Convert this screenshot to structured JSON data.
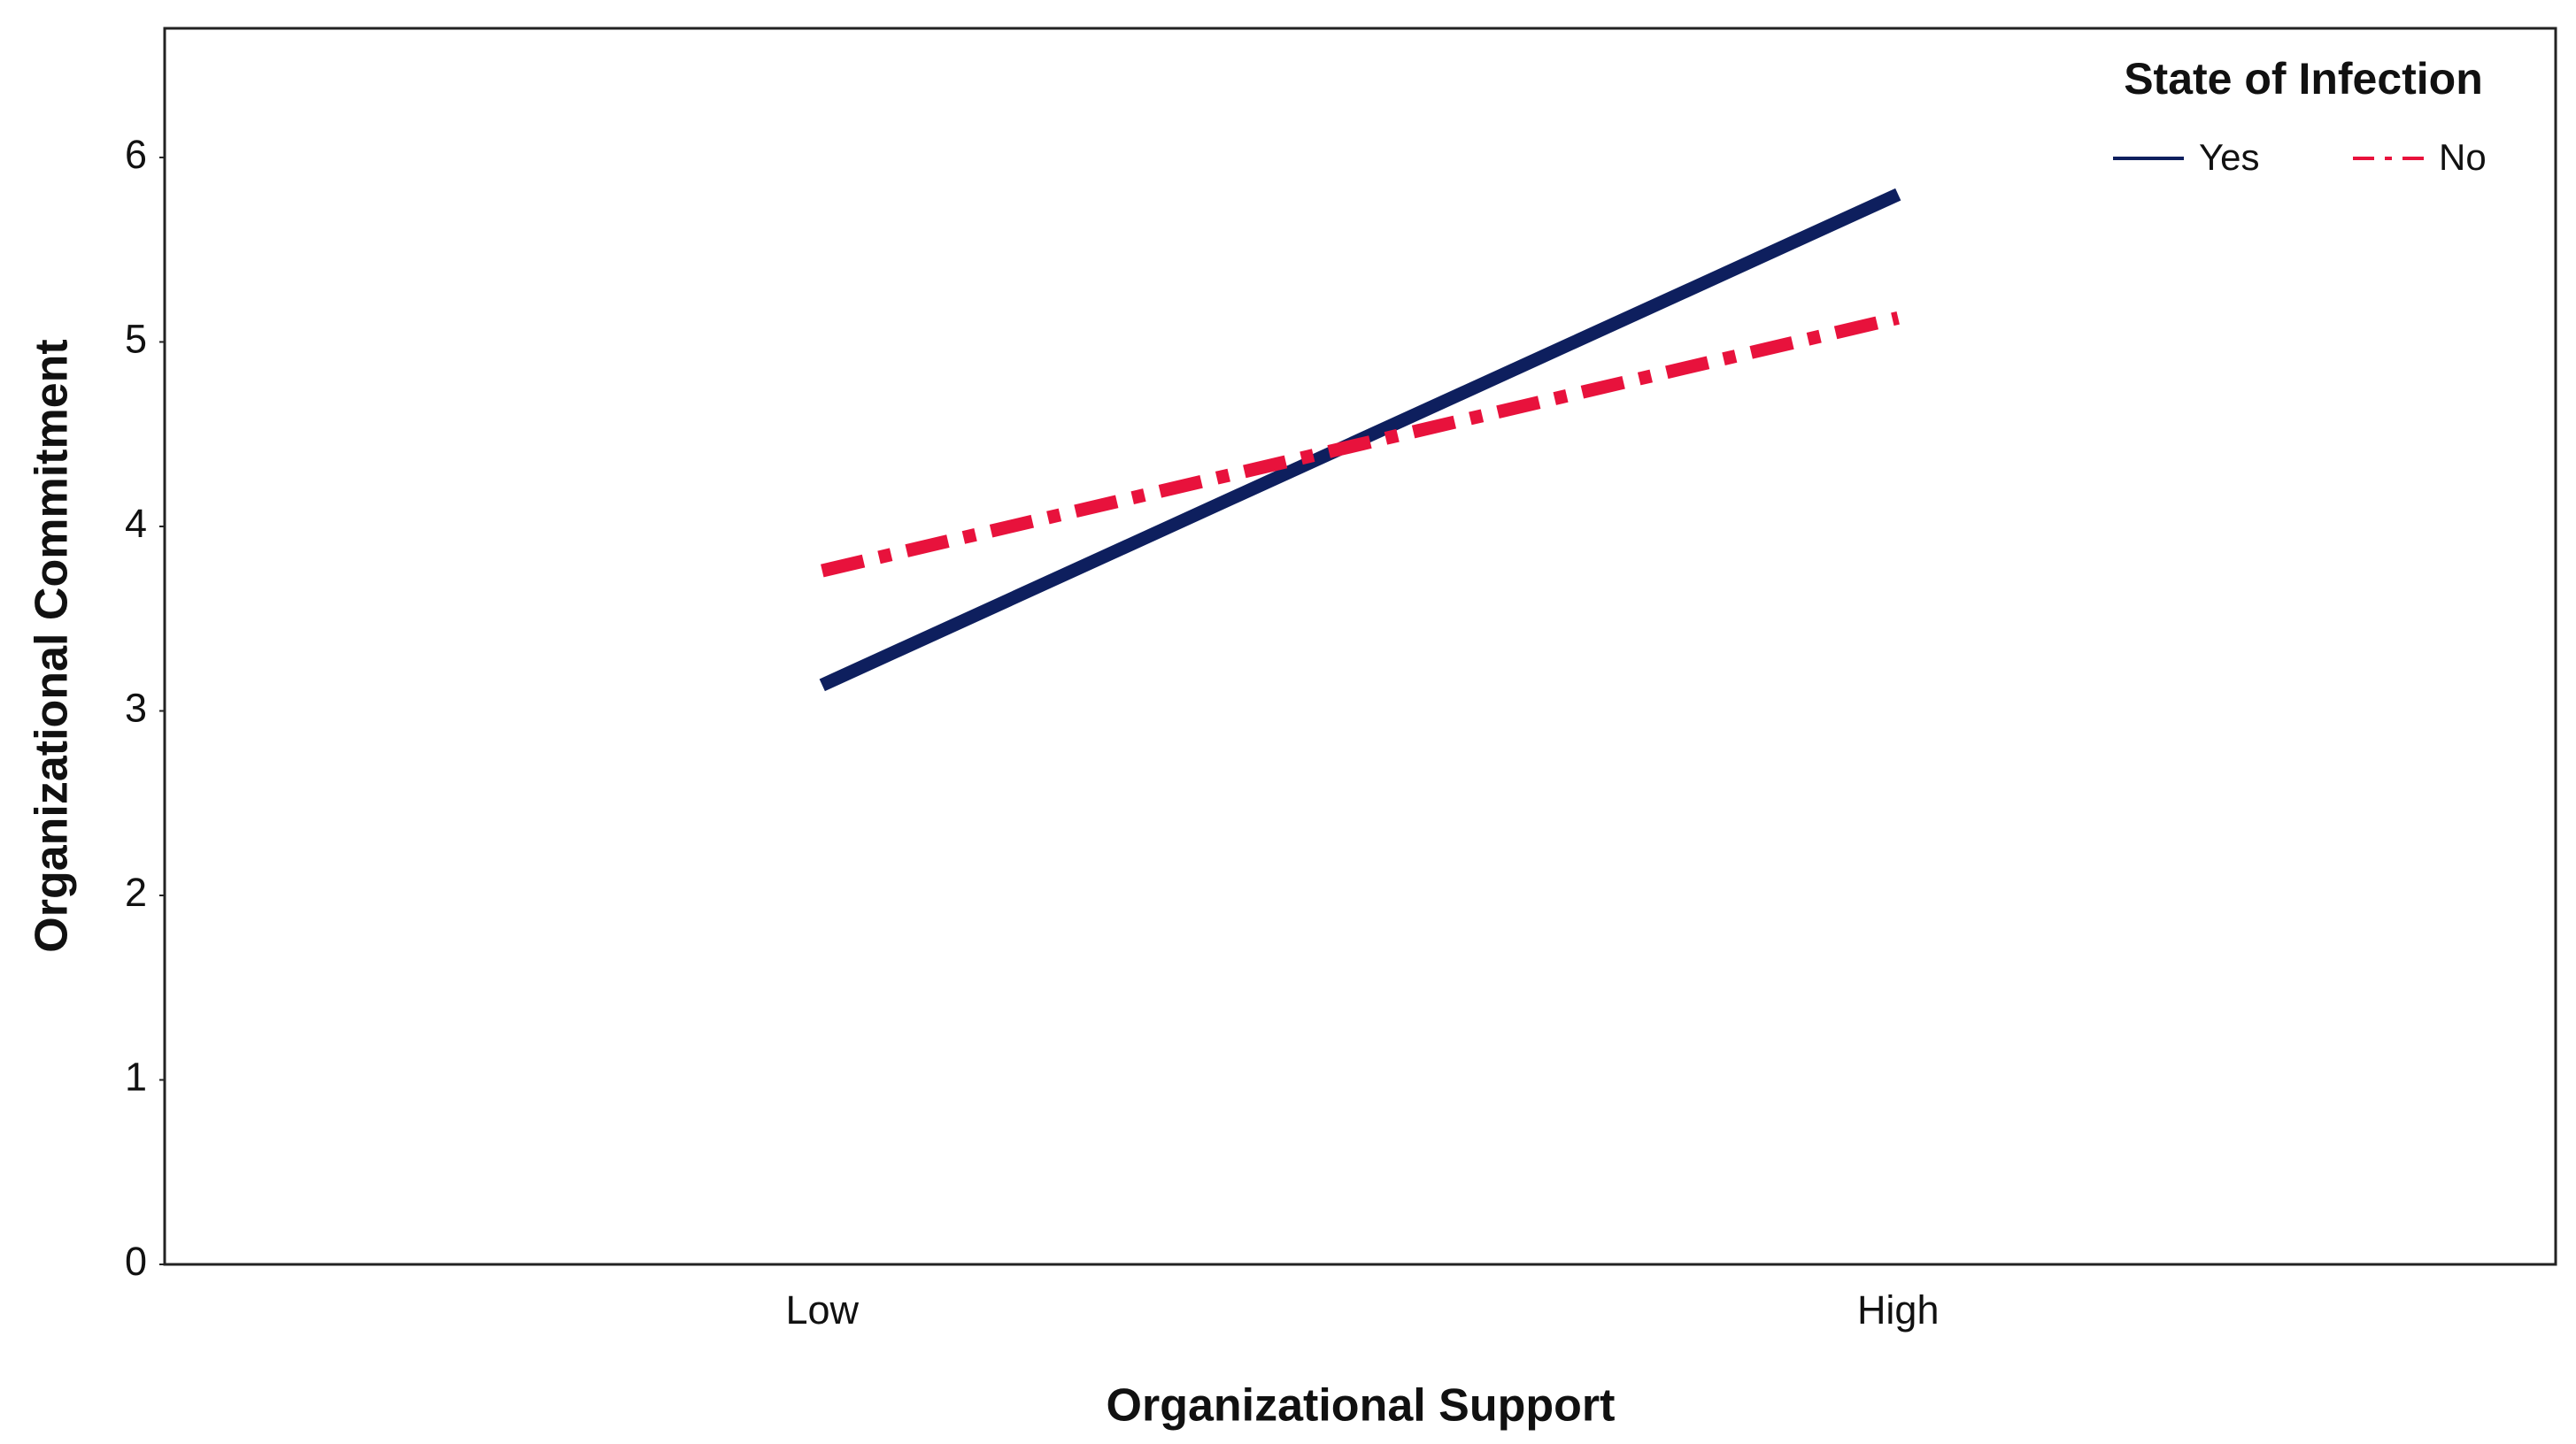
{
  "chart_data": {
    "type": "line",
    "x_label": "Organizational Support",
    "y_label": "Organizational Commitment",
    "categories": [
      "Low",
      "High"
    ],
    "series": [
      {
        "name": "Yes",
        "color": "#0e1f5e",
        "linestyle": "solid",
        "values": [
          3.14,
          5.8
        ]
      },
      {
        "name": "No",
        "color": "#e8123c",
        "linestyle": "dashdot",
        "values": [
          3.76,
          5.13
        ]
      }
    ],
    "ylim": [
      0,
      6.7
    ],
    "yticks": [
      0,
      1,
      2,
      3,
      4,
      5,
      6
    ],
    "grid": false,
    "legend": {
      "title": "State of Infection",
      "position": "top right"
    }
  }
}
